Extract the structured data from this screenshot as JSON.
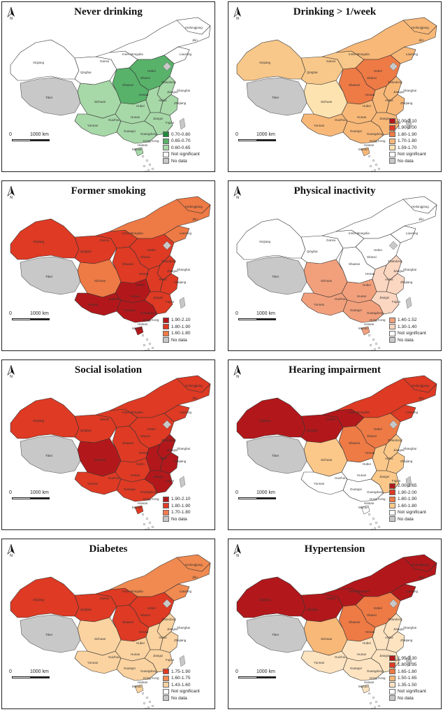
{
  "scale": {
    "zero": "0",
    "distance": "1000 km"
  },
  "place_labels": [
    "Xinjiang",
    "Tibet",
    "Qinghai",
    "Gansu",
    "Inner Mongolia",
    "Sichuan",
    "Yunnan",
    "Heilongjiang",
    "Jilin",
    "Liaoning",
    "Hebei",
    "Shanxi",
    "Shaanxi",
    "Henan",
    "Hubei",
    "Hunan",
    "Guizhou",
    "Guangxi",
    "Guangdong",
    "Jiangxi",
    "Fujian",
    "Zhejiang",
    "Shanghai",
    "Shandong",
    "Anhui",
    "Jiangsu",
    "Hainan",
    "Hong Kong",
    "Macao"
  ],
  "panels": [
    {
      "title": "Never drinking",
      "legend": [
        {
          "label": "0.70-0.80",
          "color": "#1f8a3c"
        },
        {
          "label": "0.65-0.70",
          "color": "#58b26a"
        },
        {
          "label": "0.60-0.65",
          "color": "#a7d8a8"
        },
        {
          "label": "Not significant",
          "color": "#ffffff"
        },
        {
          "label": "No data",
          "color": "#c8c8c8"
        }
      ],
      "fills": {
        "northwest": "#ffffff",
        "northeast": "#ffffff",
        "center": "#58b26a",
        "southwest": "#a7d8a8",
        "south": "#a7d8a8",
        "east": "#a7d8a8"
      }
    },
    {
      "title": "Drinking > 1/week",
      "legend": [
        {
          "label": "2.00-2.10",
          "color": "#b2181b"
        },
        {
          "label": "1.90-2.00",
          "color": "#de3a24"
        },
        {
          "label": "1.80-1.90",
          "color": "#ee7a45"
        },
        {
          "label": "1.70-1.80",
          "color": "#f8b878"
        },
        {
          "label": "1.59-1.70",
          "color": "#fde3b0"
        },
        {
          "label": "Not significant",
          "color": "#ffffff"
        },
        {
          "label": "No data",
          "color": "#c8c8c8"
        }
      ],
      "fills": {
        "northwest": "#f8c88a",
        "northeast": "#f8b878",
        "center": "#ee7a45",
        "southwest": "#fde3b0",
        "south": "#f8b878",
        "east": "#f8b878"
      }
    },
    {
      "title": "Former smoking",
      "legend": [
        {
          "label": "1.90-2.10",
          "color": "#b2181b"
        },
        {
          "label": "1.80-1.90",
          "color": "#de3a24"
        },
        {
          "label": "1.60-1.80",
          "color": "#ee7a45"
        },
        {
          "label": "No data",
          "color": "#c8c8c8"
        }
      ],
      "fills": {
        "northwest": "#de3a24",
        "northeast": "#ee7a45",
        "center": "#de3a24",
        "southwest": "#ee7a45",
        "south": "#b2181b",
        "east": "#de3a24"
      }
    },
    {
      "title": "Physical inactivity",
      "legend": [
        {
          "label": "1.40-1.52",
          "color": "#f2a07c"
        },
        {
          "label": "1.30-1.40",
          "color": "#fbd6c0"
        },
        {
          "label": "Not significant",
          "color": "#ffffff"
        },
        {
          "label": "No data",
          "color": "#c8c8c8"
        }
      ],
      "fills": {
        "northwest": "#ffffff",
        "northeast": "#ffffff",
        "center": "#ffffff",
        "southwest": "#f2a07c",
        "south": "#f2a07c",
        "east": "#fbd6c0"
      }
    },
    {
      "title": "Social isolation",
      "legend": [
        {
          "label": "1.90-2.10",
          "color": "#b2181b"
        },
        {
          "label": "1.80-1.90",
          "color": "#de3a24"
        },
        {
          "label": "1.70-1.80",
          "color": "#f27a50"
        },
        {
          "label": "No data",
          "color": "#c8c8c8"
        }
      ],
      "fills": {
        "northwest": "#de3a24",
        "northeast": "#de3a24",
        "center": "#de3a24",
        "southwest": "#b2181b",
        "south": "#de3a24",
        "east": "#b2181b"
      }
    },
    {
      "title": "Hearing impairment",
      "legend": [
        {
          "label": "2.00-2.65",
          "color": "#b2181b"
        },
        {
          "label": "1.90-2.00",
          "color": "#de3a24"
        },
        {
          "label": "1.80-1.90",
          "color": "#ee7a45"
        },
        {
          "label": "1.60-1.80",
          "color": "#fbc88a"
        },
        {
          "label": "Not significant",
          "color": "#ffffff"
        },
        {
          "label": "No data",
          "color": "#c8c8c8"
        }
      ],
      "fills": {
        "northwest": "#b2181b",
        "northeast": "#de3a24",
        "center": "#ee7a45",
        "southwest": "#fbc88a",
        "south": "#ffffff",
        "east": "#fbc88a"
      }
    },
    {
      "title": "Diabetes",
      "legend": [
        {
          "label": "1.75-1.90",
          "color": "#de3a24"
        },
        {
          "label": "1.60-1.75",
          "color": "#f08a50"
        },
        {
          "label": "1.43-1.60",
          "color": "#fbd3a0"
        },
        {
          "label": "Not significant",
          "color": "#ffffff"
        },
        {
          "label": "No data",
          "color": "#c8c8c8"
        }
      ],
      "fills": {
        "northwest": "#de3a24",
        "northeast": "#f08a50",
        "center": "#de3a24",
        "southwest": "#fbd3a0",
        "south": "#fbd3a0",
        "east": "#fbd3a0"
      }
    },
    {
      "title": "Hypertension",
      "legend": [
        {
          "label": "1.95-2.30",
          "color": "#b2181b"
        },
        {
          "label": "1.80-1.95",
          "color": "#de3a24"
        },
        {
          "label": "1.65-1.80",
          "color": "#ee7a45"
        },
        {
          "label": "1.50-1.65",
          "color": "#f8b878"
        },
        {
          "label": "1.35-1.50",
          "color": "#fde3c0"
        },
        {
          "label": "Not significant",
          "color": "#ffffff"
        },
        {
          "label": "No data",
          "color": "#c8c8c8"
        }
      ],
      "fills": {
        "northwest": "#b2181b",
        "northeast": "#b2181b",
        "center": "#ee7a45",
        "southwest": "#f8b878",
        "south": "#fde3c0",
        "east": "#fde3c0"
      }
    }
  ]
}
